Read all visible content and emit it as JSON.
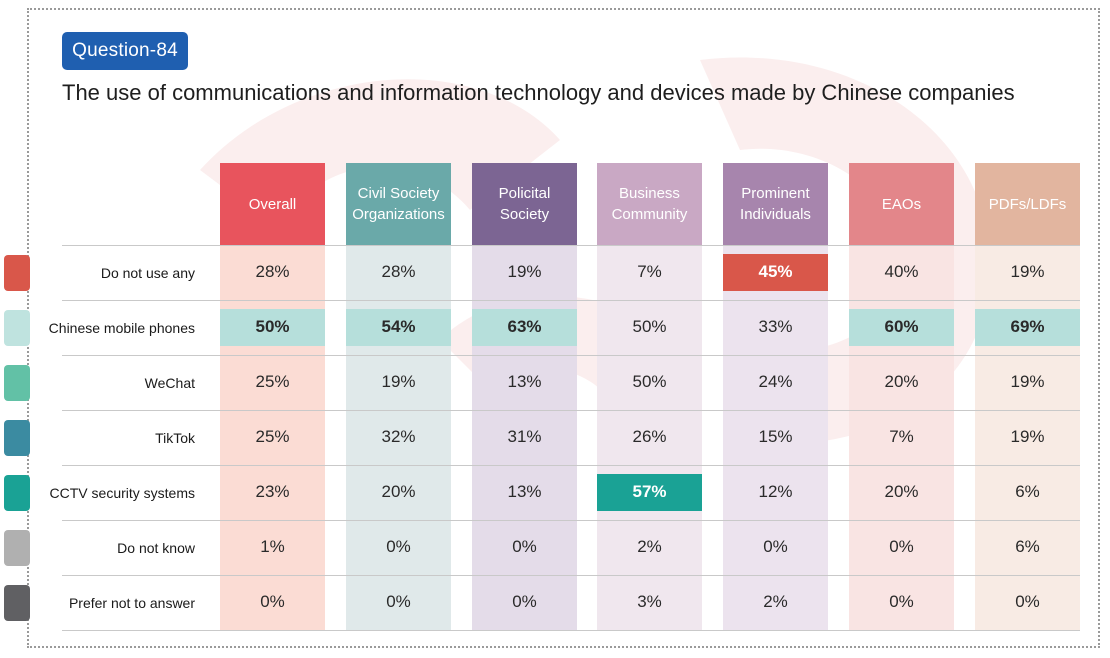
{
  "badge": "Question-84",
  "title": "The use of communications and information technology and devices made by Chinese companies",
  "chart_data": {
    "type": "table",
    "title": "The use of communications and information technology and devices made by Chinese companies",
    "columns": [
      {
        "name": "Overall",
        "head_color": "#e8545d",
        "bg_color": "#fbdcd4"
      },
      {
        "name": "Civil Society\nOrganizations",
        "head_color": "#6aa9a9",
        "bg_color": "#e0e9ea"
      },
      {
        "name": "Policital\nSociety",
        "head_color": "#7c6593",
        "bg_color": "#e4dce9"
      },
      {
        "name": "Business\nCommunity",
        "head_color": "#c9a8c4",
        "bg_color": "#f0e7ee"
      },
      {
        "name": "Prominent\nIndividuals",
        "head_color": "#a785ad",
        "bg_color": "#ece3ee"
      },
      {
        "name": "EAOs",
        "head_color": "#e3868a",
        "bg_color": "#f9e4e3"
      },
      {
        "name": "PDFs/LDFs",
        "head_color": "#e2b59f",
        "bg_color": "#f8ebe4"
      }
    ],
    "rows": [
      {
        "label": "Do not use any",
        "color": "#d9574a",
        "values": [
          "28%",
          "28%",
          "19%",
          "7%",
          "45%",
          "40%",
          "19%"
        ]
      },
      {
        "label": "Chinese mobile phones",
        "color": "#bfe3df",
        "values": [
          "50%",
          "54%",
          "63%",
          "50%",
          "33%",
          "60%",
          "69%"
        ]
      },
      {
        "label": "WeChat",
        "color": "#62c1a6",
        "values": [
          "25%",
          "19%",
          "13%",
          "50%",
          "24%",
          "20%",
          "19%"
        ]
      },
      {
        "label": "TikTok",
        "color": "#3b8ba1",
        "values": [
          "25%",
          "32%",
          "31%",
          "26%",
          "15%",
          "7%",
          "19%"
        ]
      },
      {
        "label": "CCTV security systems",
        "color": "#1aa295",
        "values": [
          "23%",
          "20%",
          "13%",
          "57%",
          "12%",
          "20%",
          "6%"
        ]
      },
      {
        "label": "Do not know",
        "color": "#b0b0b0",
        "values": [
          "1%",
          "0%",
          "0%",
          "2%",
          "0%",
          "0%",
          "6%"
        ]
      },
      {
        "label": "Prefer not to answer",
        "color": "#606063",
        "values": [
          "0%",
          "0%",
          "0%",
          "3%",
          "2%",
          "0%",
          "0%"
        ]
      }
    ],
    "highlights": [
      {
        "row": 0,
        "col": 4,
        "color": "#d9574a"
      },
      {
        "row": 1,
        "col": 0,
        "color": "#b6dfdb"
      },
      {
        "row": 1,
        "col": 1,
        "color": "#b6dfdb"
      },
      {
        "row": 1,
        "col": 2,
        "color": "#b6dfdb"
      },
      {
        "row": 1,
        "col": 5,
        "color": "#b6dfdb"
      },
      {
        "row": 1,
        "col": 6,
        "color": "#b6dfdb"
      },
      {
        "row": 4,
        "col": 3,
        "color": "#1aa295"
      }
    ]
  }
}
